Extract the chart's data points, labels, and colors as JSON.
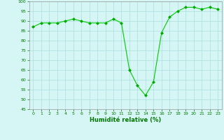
{
  "x": [
    0,
    1,
    2,
    3,
    4,
    5,
    6,
    7,
    8,
    9,
    10,
    11,
    12,
    13,
    14,
    15,
    16,
    17,
    18,
    19,
    20,
    21,
    22,
    23
  ],
  "y": [
    87,
    89,
    89,
    89,
    90,
    91,
    90,
    89,
    89,
    89,
    91,
    89,
    65,
    57,
    52,
    59,
    84,
    92,
    95,
    97,
    97,
    96,
    97,
    96
  ],
  "line_color": "#00cc00",
  "marker_color": "#00aa00",
  "bg_color": "#d6f5f5",
  "grid_color": "#aadddd",
  "xlabel": "Humidité relative (%)",
  "xlabel_color": "#007700",
  "tick_color": "#007700",
  "ylim": [
    45,
    100
  ],
  "xlim": [
    -0.5,
    23.5
  ],
  "yticks": [
    45,
    50,
    55,
    60,
    65,
    70,
    75,
    80,
    85,
    90,
    95,
    100
  ],
  "xticks": [
    0,
    1,
    2,
    3,
    4,
    5,
    6,
    7,
    8,
    9,
    10,
    11,
    12,
    13,
    14,
    15,
    16,
    17,
    18,
    19,
    20,
    21,
    22,
    23
  ]
}
